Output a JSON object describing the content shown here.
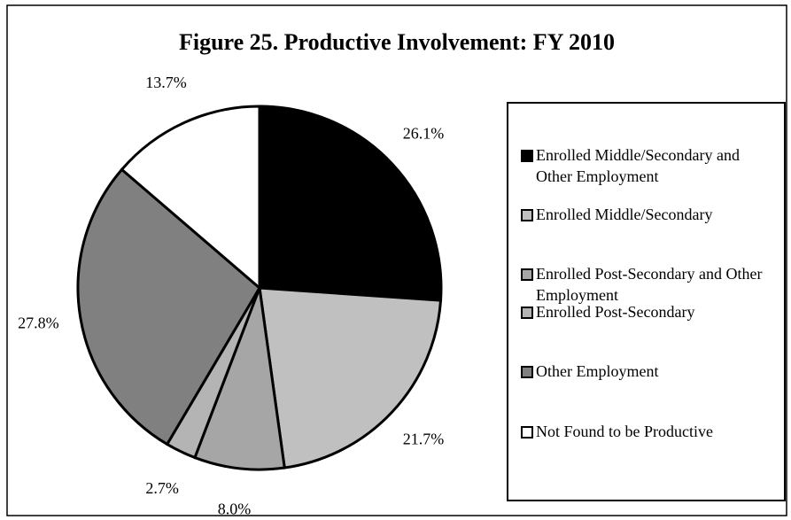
{
  "chart_data": {
    "type": "pie",
    "title": "Figure 25.  Productive Involvement:  FY 2010",
    "categories": [
      "Enrolled Middle/Secondary and Other Employment",
      "Enrolled Middle/Secondary",
      "Enrolled Post-Secondary and Other Employment",
      "Enrolled Post-Secondary",
      "Other Employment",
      "Not Found to be Productive"
    ],
    "values": [
      26.1,
      21.7,
      8.0,
      2.7,
      27.8,
      13.7
    ],
    "value_labels": [
      "26.1%",
      "21.7%",
      "8.0%",
      "2.7%",
      "27.8%",
      "13.7%"
    ],
    "colors": [
      "#000000",
      "#c0c0c0",
      "#a6a6a6",
      "#b4b4b4",
      "#808080",
      "#ffffff"
    ],
    "legend": "right"
  }
}
